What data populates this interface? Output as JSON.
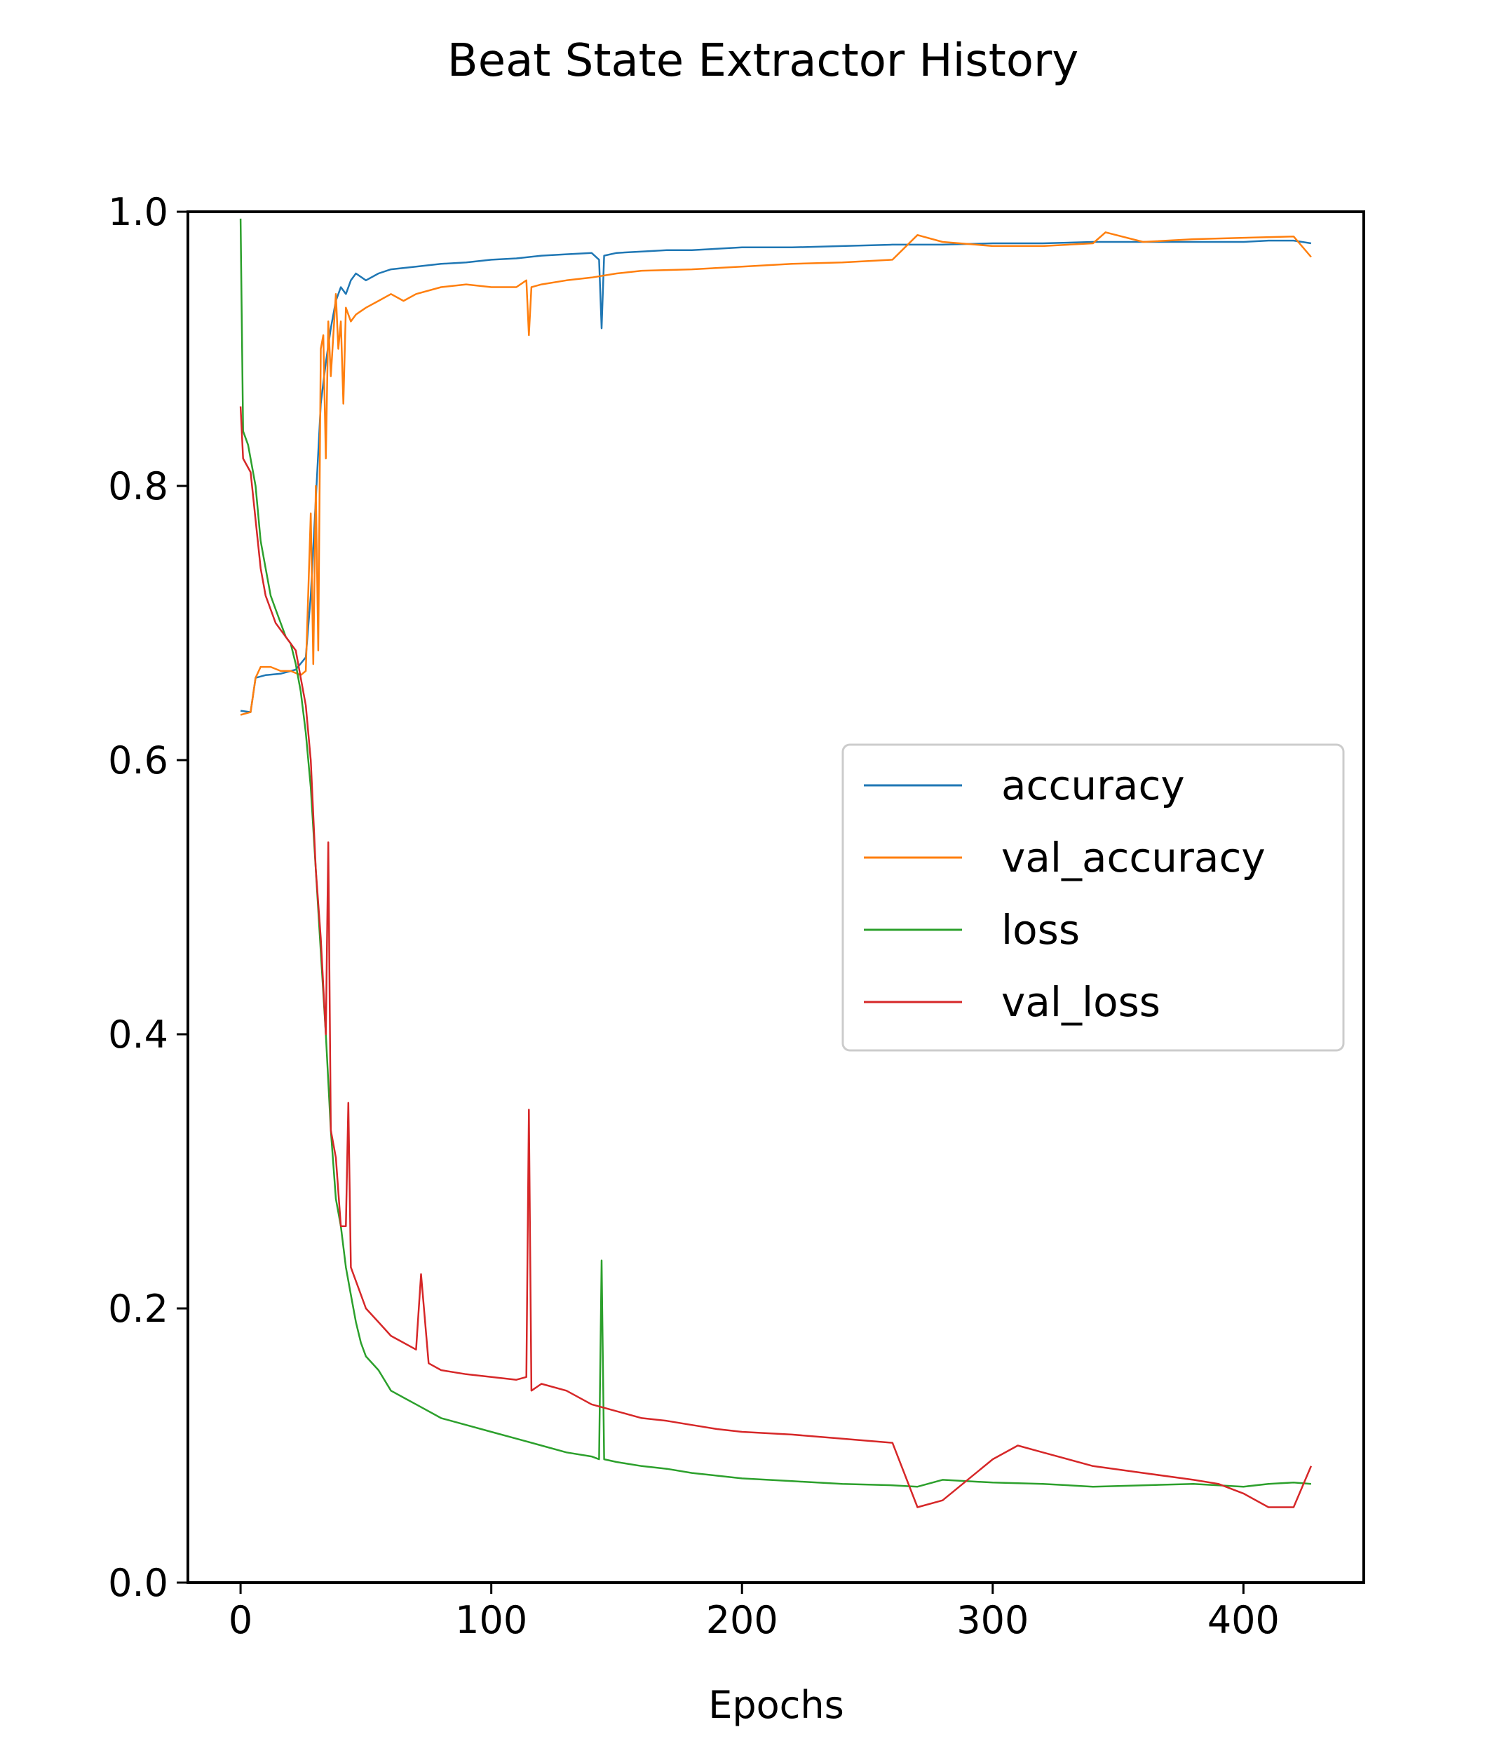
{
  "chart_data": {
    "type": "line",
    "title": "Beat State Extractor History",
    "xlabel": "Epochs",
    "ylabel": "",
    "xlim": [
      -21,
      448
    ],
    "ylim": [
      0.0,
      1.0
    ],
    "x_ticks": [
      0,
      100,
      200,
      300,
      400
    ],
    "x_tick_labels": [
      "0",
      "100",
      "200",
      "300",
      "400"
    ],
    "y_ticks": [
      0.0,
      0.2,
      0.4,
      0.6,
      0.8,
      1.0
    ],
    "y_tick_labels": [
      "0.0",
      "0.2",
      "0.4",
      "0.6",
      "0.8",
      "1.0"
    ],
    "grid": false,
    "legend_position": "center-right",
    "series": [
      {
        "name": "accuracy",
        "color": "#1f77b4",
        "x": [
          0,
          4,
          6,
          10,
          16,
          22,
          26,
          28,
          30,
          32,
          34,
          36,
          38,
          40,
          42,
          44,
          46,
          50,
          55,
          60,
          70,
          80,
          90,
          100,
          110,
          120,
          130,
          140,
          143,
          144,
          145,
          150,
          160,
          170,
          180,
          190,
          200,
          220,
          240,
          260,
          280,
          300,
          320,
          340,
          360,
          380,
          400,
          410,
          420,
          427
        ],
        "values": [
          0.636,
          0.635,
          0.66,
          0.662,
          0.663,
          0.666,
          0.675,
          0.72,
          0.79,
          0.86,
          0.89,
          0.915,
          0.935,
          0.945,
          0.94,
          0.95,
          0.955,
          0.95,
          0.955,
          0.958,
          0.96,
          0.962,
          0.963,
          0.965,
          0.966,
          0.968,
          0.969,
          0.97,
          0.965,
          0.915,
          0.968,
          0.97,
          0.971,
          0.972,
          0.972,
          0.973,
          0.974,
          0.974,
          0.975,
          0.976,
          0.976,
          0.977,
          0.977,
          0.978,
          0.978,
          0.978,
          0.978,
          0.979,
          0.979,
          0.977
        ]
      },
      {
        "name": "val_accuracy",
        "color": "#ff7f0e",
        "x": [
          0,
          4,
          6,
          8,
          12,
          16,
          20,
          24,
          26,
          28,
          29,
          30,
          31,
          32,
          33,
          34,
          35,
          36,
          38,
          39,
          40,
          41,
          42,
          44,
          46,
          50,
          55,
          60,
          65,
          70,
          80,
          90,
          100,
          110,
          114,
          115,
          116,
          120,
          130,
          140,
          150,
          160,
          180,
          200,
          220,
          240,
          260,
          270,
          280,
          300,
          320,
          340,
          345,
          360,
          380,
          400,
          420,
          427
        ],
        "values": [
          0.633,
          0.635,
          0.66,
          0.668,
          0.668,
          0.665,
          0.665,
          0.662,
          0.665,
          0.78,
          0.67,
          0.8,
          0.68,
          0.9,
          0.91,
          0.82,
          0.92,
          0.88,
          0.94,
          0.9,
          0.92,
          0.86,
          0.93,
          0.92,
          0.925,
          0.93,
          0.935,
          0.94,
          0.935,
          0.94,
          0.945,
          0.947,
          0.945,
          0.945,
          0.95,
          0.91,
          0.945,
          0.947,
          0.95,
          0.952,
          0.955,
          0.957,
          0.958,
          0.96,
          0.962,
          0.963,
          0.965,
          0.983,
          0.978,
          0.975,
          0.975,
          0.977,
          0.985,
          0.978,
          0.98,
          0.981,
          0.982,
          0.967
        ]
      },
      {
        "name": "loss",
        "color": "#2ca02c",
        "x": [
          0,
          1,
          3,
          6,
          8,
          10,
          12,
          14,
          16,
          18,
          20,
          22,
          24,
          26,
          28,
          30,
          32,
          34,
          36,
          38,
          40,
          42,
          44,
          46,
          48,
          50,
          55,
          60,
          65,
          70,
          80,
          90,
          100,
          110,
          120,
          130,
          140,
          143,
          144,
          145,
          150,
          160,
          170,
          180,
          190,
          200,
          220,
          240,
          260,
          270,
          280,
          300,
          320,
          340,
          360,
          380,
          400,
          410,
          420,
          427
        ],
        "values": [
          0.995,
          0.84,
          0.83,
          0.8,
          0.76,
          0.74,
          0.72,
          0.71,
          0.7,
          0.69,
          0.685,
          0.67,
          0.65,
          0.62,
          0.58,
          0.52,
          0.46,
          0.4,
          0.33,
          0.28,
          0.26,
          0.23,
          0.21,
          0.19,
          0.175,
          0.165,
          0.155,
          0.14,
          0.135,
          0.13,
          0.12,
          0.115,
          0.11,
          0.105,
          0.1,
          0.095,
          0.092,
          0.09,
          0.235,
          0.09,
          0.088,
          0.085,
          0.083,
          0.08,
          0.078,
          0.076,
          0.074,
          0.072,
          0.071,
          0.07,
          0.075,
          0.073,
          0.072,
          0.07,
          0.071,
          0.072,
          0.07,
          0.072,
          0.073,
          0.072
        ]
      },
      {
        "name": "val_loss",
        "color": "#d62728",
        "x": [
          0,
          1,
          4,
          8,
          10,
          14,
          18,
          22,
          24,
          26,
          28,
          30,
          32,
          34,
          35,
          36,
          37,
          38,
          40,
          42,
          43,
          44,
          46,
          50,
          55,
          60,
          65,
          70,
          72,
          75,
          80,
          90,
          100,
          110,
          114,
          115,
          116,
          120,
          130,
          140,
          150,
          160,
          170,
          180,
          190,
          200,
          220,
          240,
          260,
          270,
          280,
          300,
          310,
          320,
          340,
          360,
          380,
          390,
          400,
          410,
          420,
          427
        ],
        "values": [
          0.858,
          0.82,
          0.81,
          0.74,
          0.72,
          0.7,
          0.69,
          0.68,
          0.66,
          0.64,
          0.6,
          0.52,
          0.47,
          0.4,
          0.54,
          0.33,
          0.32,
          0.31,
          0.26,
          0.26,
          0.35,
          0.23,
          0.22,
          0.2,
          0.19,
          0.18,
          0.175,
          0.17,
          0.225,
          0.16,
          0.155,
          0.152,
          0.15,
          0.148,
          0.15,
          0.345,
          0.14,
          0.145,
          0.14,
          0.13,
          0.125,
          0.12,
          0.118,
          0.115,
          0.112,
          0.11,
          0.108,
          0.105,
          0.102,
          0.055,
          0.06,
          0.09,
          0.1,
          0.095,
          0.085,
          0.08,
          0.075,
          0.072,
          0.065,
          0.055,
          0.055,
          0.085
        ]
      }
    ]
  }
}
